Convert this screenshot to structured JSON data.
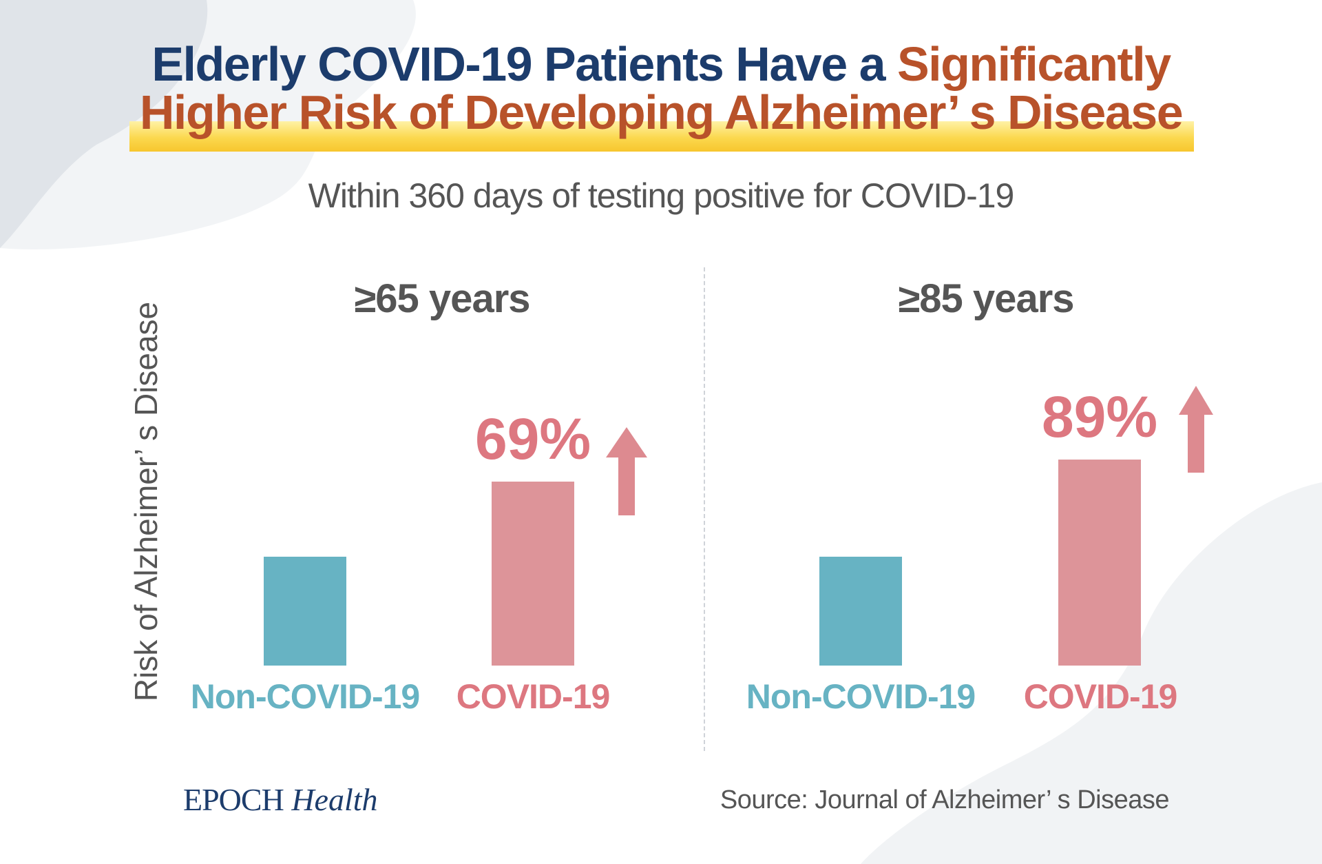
{
  "header": {
    "title_line1_navy": "Elderly COVID-19 Patients Have a ",
    "title_line1_rust": "Significantly",
    "title_line2": "Higher Risk of Developing Alzheimer’ s Disease",
    "subtitle": "Within 360 days of testing positive for COVID-19"
  },
  "colors": {
    "navy": "#1c3c6c",
    "rust": "#b8522a",
    "highlight": "#fbd84e",
    "non_covid": "#67b3c3",
    "covid_bar": "#dd9499",
    "covid_text": "#dd7780"
  },
  "chart_data": [
    {
      "type": "bar",
      "title": "≥65 years",
      "ylabel": "Risk of Alzheimer’ s Disease",
      "categories": [
        "Non-COVID-19",
        "COVID-19"
      ],
      "values": [
        1.0,
        1.69
      ],
      "data_labels": [
        "",
        "69%"
      ],
      "ylim": [
        0,
        2.0
      ]
    },
    {
      "type": "bar",
      "title": "≥85 years",
      "ylabel": "Risk of Alzheimer’ s Disease",
      "categories": [
        "Non-COVID-19",
        "COVID-19"
      ],
      "values": [
        1.0,
        1.89
      ],
      "data_labels": [
        "",
        "89%"
      ],
      "ylim": [
        0,
        2.0
      ]
    }
  ],
  "footer": {
    "logo_word": "EPOCH",
    "logo_italic": "Health",
    "source": "Source: Journal of Alzheimer’ s Disease"
  }
}
